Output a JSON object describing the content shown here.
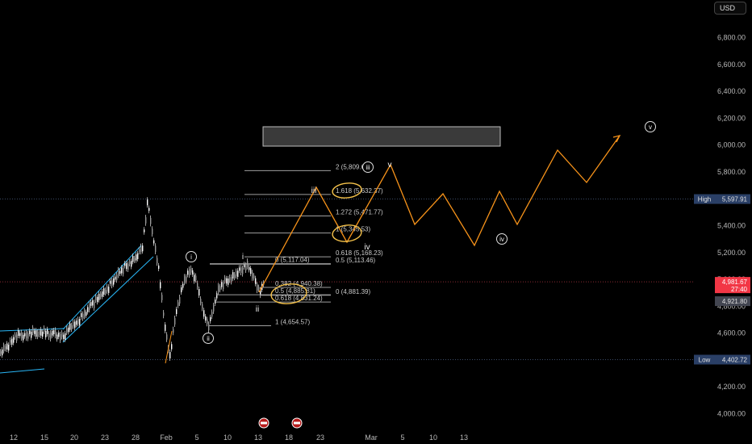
{
  "currency": "USD",
  "chart_data": {
    "type": "candlestick",
    "y_axis": {
      "min": 4000,
      "max": 6900,
      "ticks": [
        "4,000.00",
        "4,200.00",
        "4,400.00",
        "4,600.00",
        "4,800.00",
        "5,000.00",
        "5,200.00",
        "5,400.00",
        "5,600.00",
        "5,800.00",
        "6,000.00",
        "6,200.00",
        "6,400.00",
        "6,600.00",
        "6,800.00"
      ]
    },
    "x_axis": {
      "ticks": [
        "12",
        "15",
        "20",
        "23",
        "28",
        "Feb",
        "5",
        "10",
        "13",
        "18",
        "23",
        "Mar",
        "5",
        "10",
        "13"
      ]
    },
    "price_labels": {
      "high": {
        "label": "High",
        "value": "5,597.91",
        "price": 5597.91,
        "color": "#2a3f66"
      },
      "current": {
        "value": "4,981.67",
        "timer": "27:40",
        "price": 4981.67,
        "color": "#f23645"
      },
      "other": {
        "value": "4,921.80",
        "price": 4921.8,
        "color": "#434651"
      },
      "low": {
        "label": "Low",
        "value": "4,402.72",
        "price": 4402.72,
        "color": "#2a3f66"
      }
    },
    "fib_levels": [
      {
        "text": "2 (5,809.66)",
        "price": 5809.66
      },
      {
        "text": "1.618 (5,632.37)",
        "price": 5632.37
      },
      {
        "text": "1.272 (5,471.77)",
        "price": 5471.77
      },
      {
        "text": "1 (5,345.53)",
        "price": 5345.53
      },
      {
        "text": "0.618 (5,168.23)",
        "price": 5168.23
      },
      {
        "text": "0 (5,117.04)",
        "price": 5117.04
      },
      {
        "text": "0.5 (5,113.46)",
        "price": 5113.46
      },
      {
        "text": "0.382 (4,940.38)",
        "price": 4940.38
      },
      {
        "text": "0.5 (4,885.81)",
        "price": 4885.81
      },
      {
        "text": "0 (4,881.39)",
        "price": 4881.39
      },
      {
        "text": "0.618 (4,831.24)",
        "price": 4831.24
      },
      {
        "text": "1 (4,654.57)",
        "price": 4654.57
      }
    ],
    "wave_labels": [
      "i",
      "ii",
      "iii",
      "iv",
      "v",
      "i",
      "ii",
      "iii",
      "iv",
      "v"
    ],
    "projection_color": "#f7931a",
    "channel_color": "#29b6f6",
    "target_box": {
      "from": 6000,
      "to": 6140
    },
    "grid": false
  }
}
